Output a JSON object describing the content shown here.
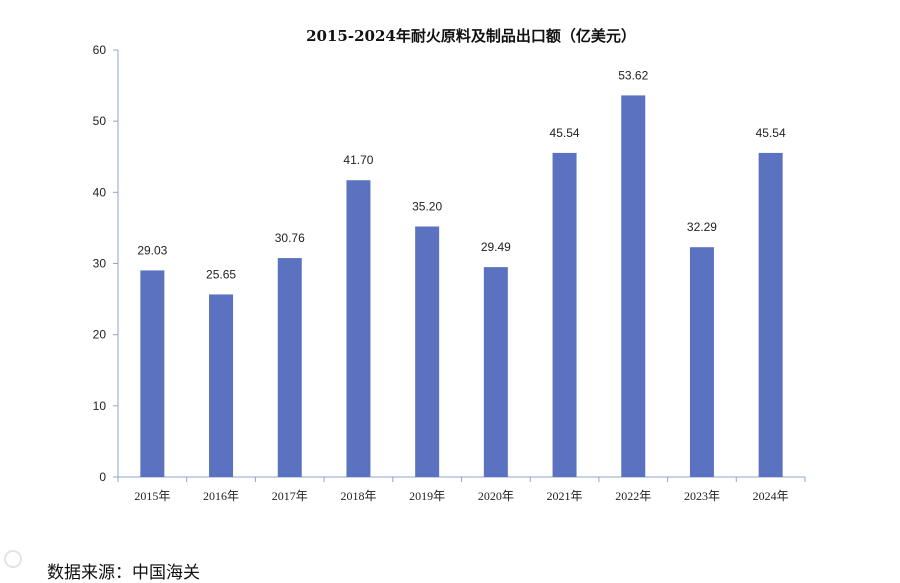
{
  "chart_data": {
    "type": "bar",
    "title": "2015-2024年耐火原料及制品出口额（亿美元）",
    "categories": [
      "2015年",
      "2016年",
      "2017年",
      "2018年",
      "2019年",
      "2020年",
      "2021年",
      "2022年",
      "2023年",
      "2024年"
    ],
    "values": [
      29.03,
      25.65,
      30.76,
      41.7,
      35.2,
      29.49,
      45.54,
      53.62,
      32.29,
      45.54
    ],
    "value_labels": [
      "29.03",
      "25.65",
      "30.76",
      "41.70",
      "35.20",
      "29.49",
      "45.54",
      "53.62",
      "32.29",
      "45.54"
    ],
    "ylim": [
      0,
      60
    ],
    "yticks": [
      "0",
      "10",
      "20",
      "30",
      "40",
      "50",
      "60"
    ],
    "xlabel": "",
    "ylabel": "",
    "grid": false,
    "bar_color": "#5b72c0"
  },
  "source_note": "数据来源：中国海关"
}
